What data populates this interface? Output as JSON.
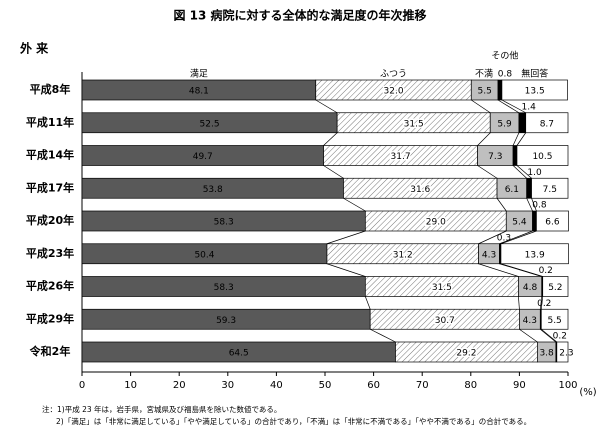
{
  "chart_data": {
    "type": "stacked-bar-horizontal",
    "title": "図 13 病院に対する全体的な満足度の年次推移",
    "section": "外 来",
    "xlabel": "(%)",
    "categories": [
      "平成8年",
      "平成11年",
      "平成14年",
      "平成17年",
      "平成20年",
      "平成23年",
      "平成26年",
      "平成29年",
      "令和2年"
    ],
    "series": [
      {
        "name": "満足",
        "color": "#595959",
        "values": [
          48.1,
          52.5,
          49.7,
          53.8,
          58.3,
          50.4,
          58.3,
          59.3,
          64.5
        ],
        "value_labels": [
          "48.1",
          "52.5",
          "49.7",
          "53.8",
          "58.3",
          "50.4",
          "58.3",
          "59.3",
          "64.5"
        ]
      },
      {
        "name": "ふつう",
        "color": "hatch",
        "values": [
          32.0,
          31.5,
          31.7,
          31.6,
          29.0,
          31.2,
          31.5,
          30.7,
          29.2
        ],
        "value_labels": [
          "32.0",
          "31.5",
          "31.7",
          "31.6",
          "29.0",
          "31.2",
          "31.5",
          "30.7",
          "29.2"
        ]
      },
      {
        "name": "不満",
        "color": "#bfbfbf",
        "values": [
          5.5,
          5.9,
          7.3,
          6.1,
          5.4,
          4.3,
          4.8,
          4.3,
          3.8
        ],
        "value_labels": [
          "5.5",
          "5.9",
          "7.3",
          "6.1",
          "5.4",
          "4.3",
          "4.8",
          "4.3",
          "3.8"
        ]
      },
      {
        "name": "その他",
        "color": "#000000",
        "values": [
          0.8,
          1.4,
          0.8,
          1.0,
          0.8,
          0.3,
          0.2,
          0.2,
          0.2
        ],
        "value_labels": [
          "0.8",
          "1.4",
          null,
          "1.0",
          "0.8",
          "0.3",
          "0.2",
          "0.2",
          "0.2"
        ]
      },
      {
        "name": "無回答",
        "color": "#ffffff",
        "values": [
          13.5,
          8.7,
          10.5,
          7.5,
          6.6,
          13.9,
          5.2,
          5.5,
          2.3
        ],
        "value_labels": [
          "13.5",
          "8.7",
          "10.5",
          "7.5",
          "6.6",
          "13.9",
          "5.2",
          "5.5",
          "2.3"
        ]
      }
    ],
    "xlim": [
      0,
      100
    ],
    "xticks": [
      0,
      10,
      20,
      30,
      40,
      50,
      60,
      70,
      80,
      90,
      100
    ],
    "notes": [
      "注：1)平成 23 年は，岩手県，宮城県及び福島県を除いた数値である。",
      "2)「満足」は「非常に満足している」「やや満足している」の合計であり，「不満」は「非常に不満である」「やや不満である」の合計である。"
    ]
  }
}
